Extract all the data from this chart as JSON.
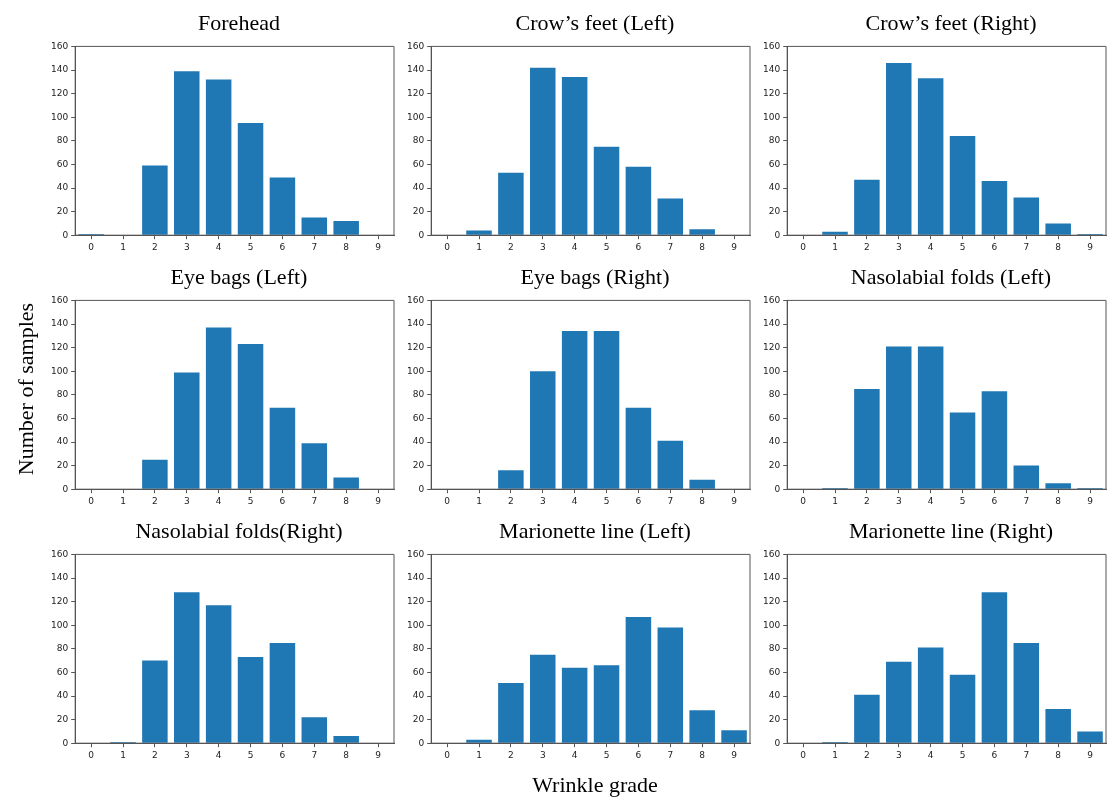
{
  "chart_data": [
    {
      "type": "bar",
      "title": "Forehead",
      "categories": [
        "0",
        "1",
        "2",
        "3",
        "4",
        "5",
        "6",
        "7",
        "8",
        "9"
      ],
      "values": [
        1,
        0,
        59,
        139,
        132,
        95,
        49,
        15,
        12,
        0
      ],
      "color": "#1f77b4",
      "ylim": [
        0,
        160
      ],
      "yticks": [
        0,
        20,
        40,
        60,
        80,
        100,
        120,
        140,
        160
      ]
    },
    {
      "type": "bar",
      "title": "Crow’s feet (Left)",
      "categories": [
        "0",
        "1",
        "2",
        "3",
        "4",
        "5",
        "6",
        "7",
        "8",
        "9"
      ],
      "values": [
        0,
        4,
        53,
        142,
        134,
        75,
        58,
        31,
        5,
        0
      ],
      "color": "#1f77b4",
      "ylim": [
        0,
        160
      ],
      "yticks": [
        0,
        20,
        40,
        60,
        80,
        100,
        120,
        140,
        160
      ]
    },
    {
      "type": "bar",
      "title": "Crow’s feet (Right)",
      "categories": [
        "0",
        "1",
        "2",
        "3",
        "4",
        "5",
        "6",
        "7",
        "8",
        "9"
      ],
      "values": [
        0,
        3,
        47,
        146,
        133,
        84,
        46,
        32,
        10,
        1
      ],
      "color": "#1f77b4",
      "ylim": [
        0,
        160
      ],
      "yticks": [
        0,
        20,
        40,
        60,
        80,
        100,
        120,
        140,
        160
      ]
    },
    {
      "type": "bar",
      "title": "Eye bags (Left)",
      "ylabel": "Number of samples",
      "categories": [
        "0",
        "1",
        "2",
        "3",
        "4",
        "5",
        "6",
        "7",
        "8",
        "9"
      ],
      "values": [
        0,
        0,
        25,
        99,
        137,
        123,
        69,
        39,
        10,
        0
      ],
      "color": "#1f77b4",
      "ylim": [
        0,
        160
      ],
      "yticks": [
        0,
        20,
        40,
        60,
        80,
        100,
        120,
        140,
        160
      ]
    },
    {
      "type": "bar",
      "title": "Eye bags (Right)",
      "categories": [
        "0",
        "1",
        "2",
        "3",
        "4",
        "5",
        "6",
        "7",
        "8",
        "9"
      ],
      "values": [
        0,
        0,
        16,
        100,
        134,
        134,
        69,
        41,
        8,
        0
      ],
      "color": "#1f77b4",
      "ylim": [
        0,
        160
      ],
      "yticks": [
        0,
        20,
        40,
        60,
        80,
        100,
        120,
        140,
        160
      ]
    },
    {
      "type": "bar",
      "title": "Nasolabial  folds (Left)",
      "categories": [
        "0",
        "1",
        "2",
        "3",
        "4",
        "5",
        "6",
        "7",
        "8",
        "9"
      ],
      "values": [
        0,
        1,
        85,
        121,
        121,
        65,
        83,
        20,
        5,
        1
      ],
      "color": "#1f77b4",
      "ylim": [
        0,
        160
      ],
      "yticks": [
        0,
        20,
        40,
        60,
        80,
        100,
        120,
        140,
        160
      ]
    },
    {
      "type": "bar",
      "title": "Nasolabial  folds(Right)",
      "categories": [
        "0",
        "1",
        "2",
        "3",
        "4",
        "5",
        "6",
        "7",
        "8",
        "9"
      ],
      "values": [
        0,
        1,
        70,
        128,
        117,
        73,
        85,
        22,
        6,
        0
      ],
      "color": "#1f77b4",
      "ylim": [
        0,
        160
      ],
      "yticks": [
        0,
        20,
        40,
        60,
        80,
        100,
        120,
        140,
        160
      ]
    },
    {
      "type": "bar",
      "title": "Marionette line (Left)",
      "xlabel": "Wrinkle grade",
      "categories": [
        "0",
        "1",
        "2",
        "3",
        "4",
        "5",
        "6",
        "7",
        "8",
        "9"
      ],
      "values": [
        0,
        3,
        51,
        75,
        64,
        66,
        107,
        98,
        28,
        11
      ],
      "color": "#1f77b4",
      "ylim": [
        0,
        160
      ],
      "yticks": [
        0,
        20,
        40,
        60,
        80,
        100,
        120,
        140,
        160
      ]
    },
    {
      "type": "bar",
      "title": "Marionette line (Right)",
      "categories": [
        "0",
        "1",
        "2",
        "3",
        "4",
        "5",
        "6",
        "7",
        "8",
        "9"
      ],
      "values": [
        0,
        1,
        41,
        69,
        81,
        58,
        128,
        85,
        29,
        10
      ],
      "color": "#1f77b4",
      "ylim": [
        0,
        160
      ],
      "yticks": [
        0,
        20,
        40,
        60,
        80,
        100,
        120,
        140,
        160
      ]
    }
  ]
}
